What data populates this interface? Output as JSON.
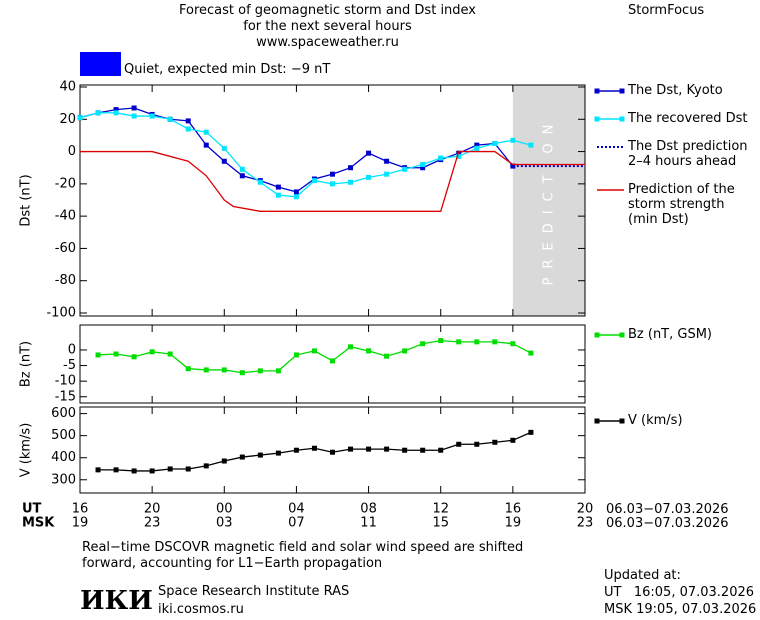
{
  "title": "Forecast of geomagnetic storm and Dst index\nfor the next several hours\nwww.spaceweather.ru",
  "brand": "StormFocus",
  "status": {
    "text": "Quiet, expected min Dst: −9 nT",
    "color": "#0000ff"
  },
  "date_range_ut": "06.03−07.03.2026",
  "date_range_msk": "06.03−07.03.2026",
  "footnote": "Real−time DSCOVR magnetic field and solar wind speed are shifted\nforward, accounting for L1−Earth propagation",
  "institute": {
    "logo": "ИКИ",
    "name": "Space Research Institute RAS",
    "url": "iki.cosmos.ru"
  },
  "updated": {
    "heading": "Updated at:",
    "ut": "UT   16:05, 07.03.2026",
    "msk": "MSK 19:05, 07.03.2026"
  },
  "chart_data": [
    {
      "type": "line",
      "y_label": "Dst (nT)",
      "ylim": [
        -100,
        40
      ],
      "yticks": [
        40,
        20,
        0,
        -20,
        -40,
        -60,
        -80,
        -100
      ],
      "xlim": [
        0,
        28
      ],
      "prediction_band": {
        "xlim": [
          24,
          28
        ],
        "label": "PREDICTION",
        "color": "#d9d9d9"
      },
      "series": [
        {
          "name": "The Dst, Kyoto",
          "color": "#0000cc",
          "marker": "square",
          "x": [
            0,
            1,
            2,
            3,
            4,
            5,
            6,
            7,
            8,
            9,
            10,
            11,
            12,
            13,
            14,
            15,
            16,
            17,
            18,
            19,
            20,
            21,
            22,
            23,
            24
          ],
          "values": [
            21,
            24,
            26,
            27,
            23,
            20,
            19,
            4,
            -6,
            -15,
            -18,
            -22,
            -25,
            -17,
            -14,
            -10,
            -1,
            -6,
            -10,
            -10,
            -5,
            -1,
            4,
            5,
            -9
          ]
        },
        {
          "name": "The recovered Dst",
          "color": "#00e5ff",
          "marker": "square",
          "x": [
            0,
            1,
            2,
            3,
            4,
            5,
            6,
            7,
            8,
            9,
            10,
            11,
            12,
            13,
            14,
            15,
            16,
            17,
            18,
            19,
            20,
            21,
            22,
            23,
            24,
            25
          ],
          "values": [
            21,
            24,
            24,
            22,
            22,
            20,
            14,
            12,
            2,
            -11,
            -19,
            -27,
            -28,
            -18,
            -20,
            -19,
            -16,
            -14,
            -11,
            -8,
            -4,
            -3,
            2,
            5,
            7,
            4
          ]
        },
        {
          "name": "The Dst prediction\n2–4 hours ahead",
          "color": "#0000cc",
          "style": "dotted",
          "x": [
            24,
            28
          ],
          "values": [
            -9,
            -9
          ]
        },
        {
          "name": "Prediction of the\nstorm strength\n(min Dst)",
          "color": "#dd0000",
          "x": [
            0,
            4,
            6,
            7,
            8,
            8.5,
            9.5,
            10,
            20,
            21,
            23,
            24,
            28
          ],
          "values": [
            0,
            0,
            -6,
            -15,
            -30,
            -34,
            -36,
            -37,
            -37,
            0,
            0,
            -8,
            -8
          ]
        }
      ]
    },
    {
      "type": "line",
      "y_label": "Bz (nT)",
      "ylim": [
        -17,
        8
      ],
      "yticks": [
        0,
        -5,
        -10,
        -15
      ],
      "xlim": [
        0,
        28
      ],
      "series": [
        {
          "name": "Bz (nT, GSM)",
          "color": "#00dd00",
          "marker": "square",
          "x": [
            1,
            2,
            3,
            4,
            5,
            6,
            7,
            8,
            9,
            10,
            11,
            12,
            13,
            14,
            15,
            16,
            17,
            18,
            19,
            20,
            21,
            22,
            23,
            24,
            25
          ],
          "values": [
            -1.6,
            -1.3,
            -2.2,
            -0.6,
            -1.3,
            -6,
            -6.4,
            -6.4,
            -7.3,
            -6.7,
            -6.7,
            -1.6,
            -0.3,
            -3.5,
            1,
            -0.3,
            -2,
            -0.3,
            2,
            3,
            2.6,
            2.6,
            2.6,
            2,
            -1
          ]
        }
      ]
    },
    {
      "type": "line",
      "y_label": "V (km/s)",
      "ylim": [
        240,
        630
      ],
      "yticks": [
        600,
        500,
        400,
        300
      ],
      "xlim": [
        0,
        28
      ],
      "x_label": "UT",
      "x2_label": "MSK",
      "xticks": [
        {
          "value": 0,
          "label": "16"
        },
        {
          "value": 4,
          "label": "20"
        },
        {
          "value": 8,
          "label": "00"
        },
        {
          "value": 12,
          "label": "04"
        },
        {
          "value": 16,
          "label": "08"
        },
        {
          "value": 20,
          "label": "12"
        },
        {
          "value": 24,
          "label": "16"
        },
        {
          "value": 28,
          "label": "20"
        }
      ],
      "x2ticks": [
        {
          "value": 0,
          "label": "19"
        },
        {
          "value": 4,
          "label": "23"
        },
        {
          "value": 8,
          "label": "03"
        },
        {
          "value": 12,
          "label": "07"
        },
        {
          "value": 16,
          "label": "11"
        },
        {
          "value": 20,
          "label": "15"
        },
        {
          "value": 24,
          "label": "19"
        },
        {
          "value": 28,
          "label": "23"
        }
      ],
      "series": [
        {
          "name": "V (km/s)",
          "color": "#000000",
          "marker": "square",
          "x": [
            1,
            2,
            3,
            4,
            5,
            6,
            7,
            8,
            9,
            10,
            11,
            12,
            13,
            14,
            15,
            16,
            17,
            18,
            19,
            20,
            21,
            22,
            23,
            24,
            25
          ],
          "values": [
            345,
            345,
            340,
            340,
            349,
            349,
            363,
            385,
            403,
            412,
            421,
            434,
            443,
            425,
            439,
            439,
            439,
            434,
            434,
            434,
            461,
            461,
            470,
            479,
            515
          ]
        }
      ]
    }
  ]
}
